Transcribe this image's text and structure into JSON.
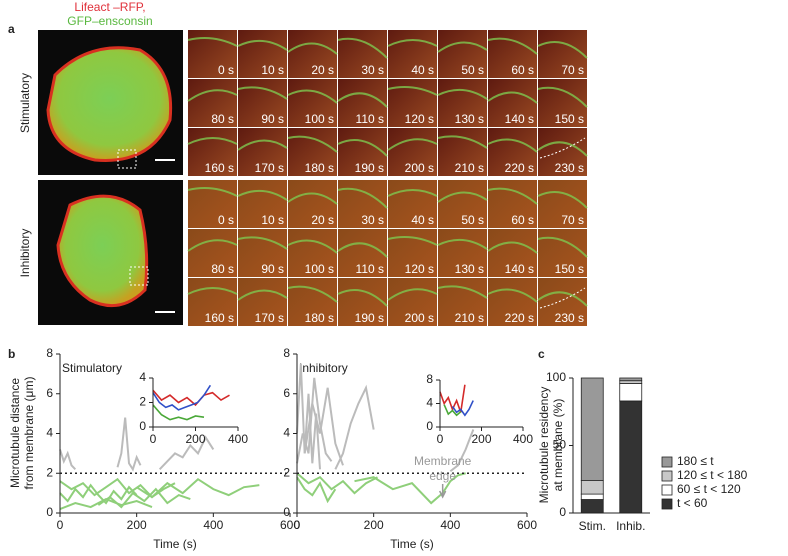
{
  "panel_a": {
    "label": "a",
    "legend": [
      "Lifeact –RFP,",
      "GFP–ensconsin"
    ],
    "conditions": [
      {
        "name": "Stimulatory",
        "time_labels": [
          "0 s",
          "10 s",
          "20 s",
          "30 s",
          "40 s",
          "50 s",
          "60 s",
          "70 s",
          "80 s",
          "90 s",
          "100 s",
          "110 s",
          "120 s",
          "130 s",
          "140 s",
          "150 s",
          "160 s",
          "170 s",
          "180 s",
          "190 s",
          "200 s",
          "210 s",
          "220 s",
          "230 s"
        ]
      },
      {
        "name": "Inhibitory",
        "time_labels": [
          "0 s",
          "10 s",
          "20 s",
          "30 s",
          "40 s",
          "50 s",
          "60 s",
          "70 s",
          "80 s",
          "90 s",
          "100 s",
          "110 s",
          "120 s",
          "130 s",
          "140 s",
          "150 s",
          "160 s",
          "170 s",
          "180 s",
          "190 s",
          "200 s",
          "210 s",
          "220 s",
          "230 s"
        ]
      }
    ]
  },
  "chart_data": [
    {
      "type": "line",
      "panel_label": "b",
      "title": "Stimulatory",
      "ylabel": [
        "Microtubule distance",
        "from membrane (μm)"
      ],
      "xlabel": "Time (s)",
      "xlim": [
        0,
        600
      ],
      "ylim": [
        0,
        8
      ],
      "xticks": [
        0,
        200,
        400,
        600
      ],
      "yticks": [
        0,
        2,
        4,
        6,
        8
      ],
      "threshold": 2,
      "series": [
        {
          "color": "#8fcf7a",
          "x": [
            0,
            20,
            40,
            60,
            80,
            100,
            120,
            140,
            160,
            180,
            200
          ],
          "values": [
            1.0,
            0.6,
            1.2,
            0.8,
            1.4,
            0.9,
            0.5,
            1.1,
            0.7,
            1.3,
            0.9
          ]
        },
        {
          "color": "#8fcf7a",
          "x": [
            0,
            30,
            60,
            90,
            120,
            150,
            180,
            210,
            240,
            270,
            300
          ],
          "values": [
            1.6,
            1.2,
            1.5,
            0.9,
            1.3,
            1.7,
            1.0,
            1.4,
            0.8,
            1.2,
            1.5
          ]
        },
        {
          "color": "#8fcf7a",
          "x": [
            100,
            130,
            160,
            190,
            220,
            250,
            280,
            310,
            340
          ],
          "values": [
            0.4,
            0.8,
            0.3,
            1.0,
            0.6,
            1.2,
            0.5,
            0.9,
            0.7
          ]
        },
        {
          "color": "#8fcf7a",
          "x": [
            200,
            240,
            280,
            320,
            360,
            400,
            440,
            480,
            520
          ],
          "values": [
            1.3,
            0.8,
            1.5,
            1.0,
            1.7,
            1.2,
            0.9,
            1.3,
            1.4
          ]
        },
        {
          "color": "#8fcf7a",
          "x": [
            0,
            40,
            80,
            120,
            160,
            200,
            240
          ],
          "values": [
            0.2,
            0.5,
            0.3,
            0.7,
            0.4,
            0.6,
            0.3
          ]
        },
        {
          "color": "#bbbbbb",
          "x": [
            150,
            160,
            170,
            180,
            190,
            200,
            210
          ],
          "values": [
            2.3,
            3.0,
            4.8,
            2.5,
            2.2,
            2.8,
            2.4
          ]
        },
        {
          "color": "#bbbbbb",
          "x": [
            260,
            280,
            300,
            320,
            340,
            360,
            380,
            400
          ],
          "values": [
            2.2,
            2.6,
            3.0,
            2.8,
            3.4,
            3.0,
            3.8,
            3.2
          ]
        },
        {
          "color": "#bbbbbb",
          "x": [
            0,
            10,
            20,
            30,
            40
          ],
          "values": [
            3.2,
            2.6,
            3.0,
            2.4,
            2.2
          ]
        }
      ],
      "inset": {
        "xlim": [
          0,
          400
        ],
        "ylim": [
          0,
          4
        ],
        "xticks": [
          0,
          200,
          400
        ],
        "yticks": [
          0,
          2,
          4
        ],
        "series": [
          {
            "color": "#d42a2a",
            "x": [
              0,
              40,
              80,
              120,
              160,
              200,
              240,
              280,
              320,
              360
            ],
            "values": [
              3.0,
              2.2,
              2.6,
              2.0,
              2.4,
              1.8,
              2.6,
              2.8,
              2.2,
              2.6
            ]
          },
          {
            "color": "#3050c8",
            "x": [
              0,
              30,
              60,
              90,
              120,
              150,
              180,
              210,
              240,
              270
            ],
            "values": [
              2.8,
              2.0,
              1.6,
              1.8,
              1.4,
              1.6,
              1.8,
              2.0,
              2.6,
              3.4
            ]
          },
          {
            "color": "#4aa838",
            "x": [
              0,
              40,
              80,
              120,
              160,
              200,
              240
            ],
            "values": [
              1.8,
              1.0,
              0.6,
              0.8,
              0.6,
              0.9,
              0.8
            ]
          }
        ]
      }
    },
    {
      "type": "line",
      "title": "Inhibitory",
      "xlabel": "Time (s)",
      "xlim": [
        0,
        600
      ],
      "ylim": [
        0,
        8
      ],
      "xticks": [
        0,
        200,
        400,
        600
      ],
      "yticks": [
        0,
        2,
        4,
        6,
        8
      ],
      "threshold": 2,
      "series": [
        {
          "color": "#bbbbbb",
          "x": [
            0,
            10,
            20,
            30,
            40,
            50,
            60
          ],
          "values": [
            4,
            7.5,
            3,
            6,
            2.5,
            5,
            2.2
          ]
        },
        {
          "color": "#bbbbbb",
          "x": [
            20,
            40,
            60,
            80,
            100,
            120
          ],
          "values": [
            3,
            5.5,
            4,
            6.3,
            3.5,
            2.4
          ]
        },
        {
          "color": "#bbbbbb",
          "x": [
            0,
            15,
            30,
            45,
            60,
            75,
            90
          ],
          "values": [
            2.5,
            4,
            3,
            6.8,
            4.5,
            3,
            2.6
          ]
        },
        {
          "color": "#bbbbbb",
          "x": [
            100,
            120,
            140,
            160,
            180,
            200
          ],
          "values": [
            2.2,
            3,
            4.5,
            5.5,
            6.3,
            4.2
          ]
        },
        {
          "color": "#bbbbbb",
          "x": [
            400,
            420,
            440,
            460
          ],
          "values": [
            2.1,
            2.4,
            3.2,
            4.2
          ]
        },
        {
          "color": "#8fcf7a",
          "x": [
            0,
            30,
            60,
            90,
            120,
            150,
            180,
            210
          ],
          "values": [
            2,
            1.5,
            1.8,
            1.2,
            1.6,
            1.0,
            1.5,
            1.8
          ]
        },
        {
          "color": "#8fcf7a",
          "x": [
            150,
            200,
            250,
            300,
            350,
            380,
            400,
            420,
            440
          ],
          "values": [
            1.6,
            1.8,
            1.2,
            1.5,
            0.5,
            1.0,
            1.6,
            1.9,
            2.0
          ]
        },
        {
          "color": "#8fcf7a",
          "x": [
            0,
            20,
            40,
            60,
            80,
            100
          ],
          "values": [
            1.8,
            1.2,
            0.9,
            1.5,
            0.6,
            1.2
          ]
        }
      ],
      "inset": {
        "xlim": [
          0,
          400
        ],
        "ylim": [
          0,
          8
        ],
        "xticks": [
          0,
          200,
          400
        ],
        "yticks": [
          0,
          4,
          8
        ],
        "series": [
          {
            "color": "#d42a2a",
            "x": [
              0,
              20,
              40,
              60,
              80,
              100,
              120
            ],
            "values": [
              6,
              4,
              5,
              3,
              4.5,
              2.5,
              7.2
            ]
          },
          {
            "color": "#3050c8",
            "x": [
              60,
              80,
              100,
              120,
              140,
              160
            ],
            "values": [
              3.5,
              2.5,
              3,
              2,
              3,
              4.5
            ]
          },
          {
            "color": "#4aa838",
            "x": [
              20,
              40,
              60,
              80,
              100
            ],
            "values": [
              3.8,
              2.2,
              2.8,
              2,
              2.6
            ]
          }
        ]
      },
      "annotation": {
        "text": [
          "Membrane",
          "edge"
        ],
        "x": 380
      }
    },
    {
      "type": "bar",
      "stacked": true,
      "panel_label": "c",
      "ylabel": [
        "Microtubule residency",
        "at membrane (%)"
      ],
      "categories": [
        "Stim.",
        "Inhib."
      ],
      "ylim": [
        0,
        100
      ],
      "yticks": [
        0,
        50,
        100
      ],
      "series": [
        {
          "name": "t < 60",
          "color": "#333333",
          "values": [
            10,
            83
          ]
        },
        {
          "name": "60 ≤ t < 120",
          "color": "#ffffff",
          "values": [
            4,
            13
          ]
        },
        {
          "name": "120 ≤ t < 180",
          "color": "#c8c8c8",
          "values": [
            10,
            2
          ]
        },
        {
          "name": "180 ≤ t",
          "color": "#999999",
          "values": [
            76,
            2
          ]
        }
      ]
    }
  ]
}
